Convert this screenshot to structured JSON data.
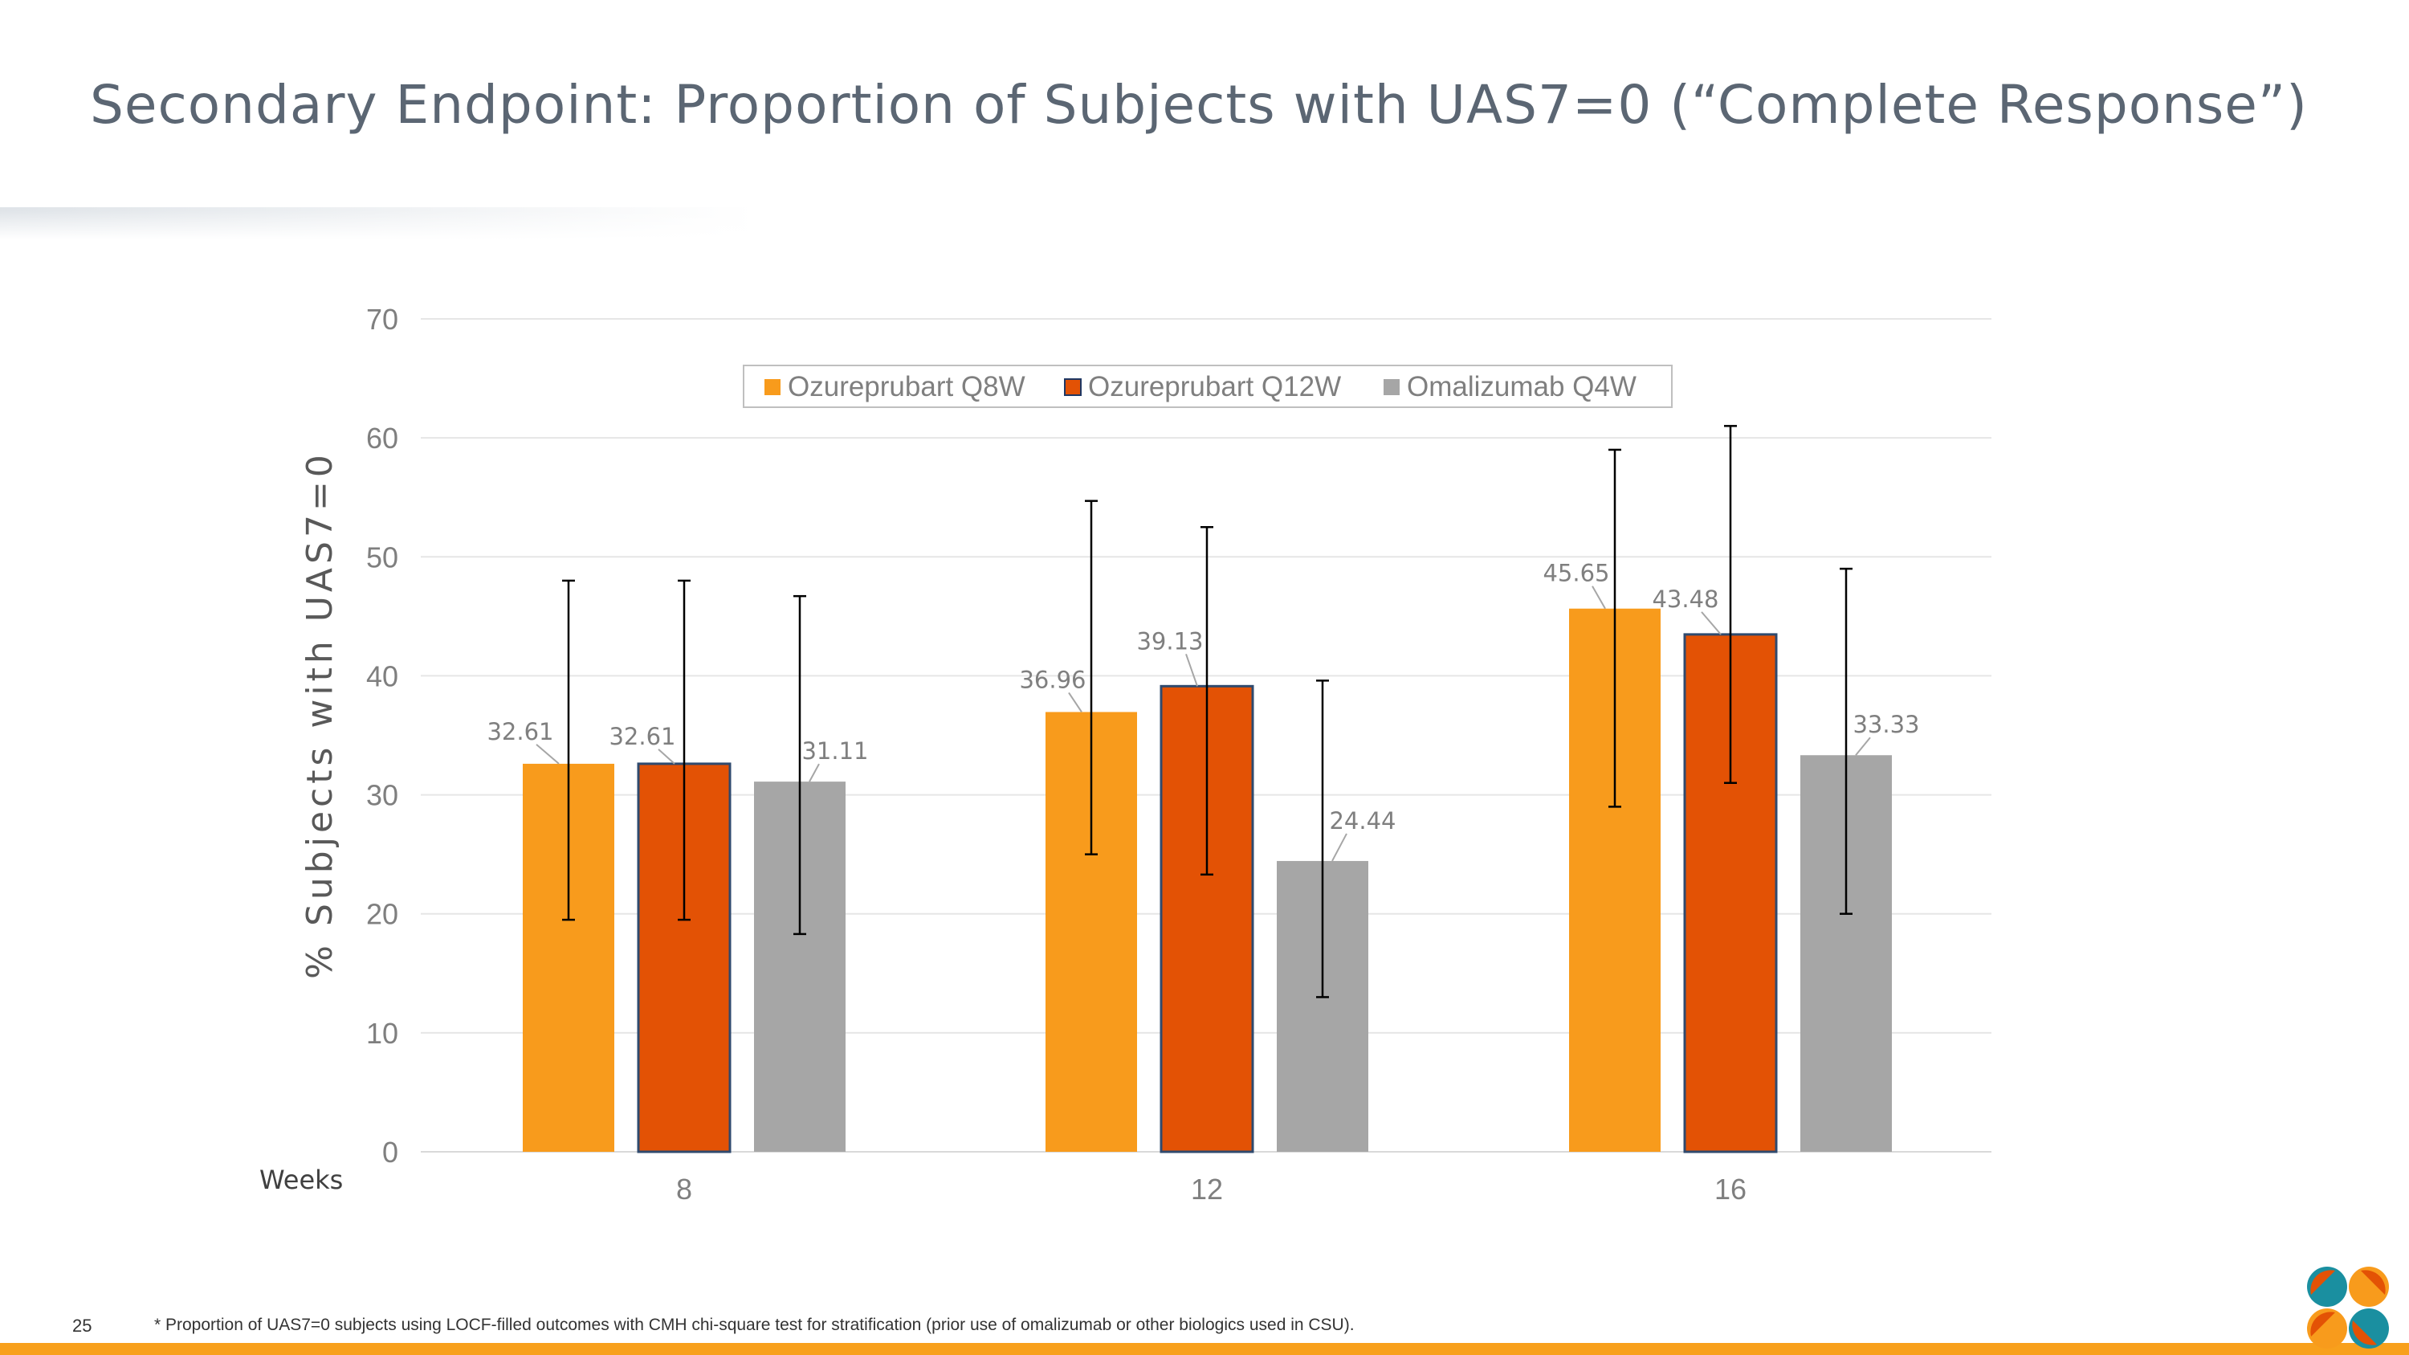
{
  "page": {
    "title": "Secondary Endpoint: Proportion of Subjects with UAS7=0 (“Complete Response”)",
    "page_number": "25",
    "footnote": "* Proportion of UAS7=0 subjects using LOCF-filled outcomes with CMH chi-square test for stratification (prior use of omalizumab or other biologics used in CSU)."
  },
  "colors": {
    "q8w": "#f89b1c",
    "q12w": "#e35205",
    "oma": "#a6a6a6",
    "axis_text": "#7f7f7f",
    "grid": "#e6e6e6",
    "accent": "#f8a01c"
  },
  "chart_data": {
    "type": "bar",
    "title": "",
    "xlabel": "Weeks",
    "ylabel": "% Subjects with UAS7=0",
    "ylim": [
      0,
      70
    ],
    "yticks": [
      0,
      10,
      20,
      30,
      40,
      50,
      60,
      70
    ],
    "categories": [
      "8",
      "12",
      "16"
    ],
    "legend_position": "top-center",
    "series": [
      {
        "name": "Ozureprubart Q8W",
        "values": [
          32.61,
          36.96,
          45.65
        ],
        "labels": [
          "32.61",
          "36.96",
          "45.65"
        ],
        "error_low": [
          19.5,
          25.0,
          29.0
        ],
        "error_high": [
          48.0,
          54.7,
          59.0
        ]
      },
      {
        "name": "Ozureprubart Q12W",
        "values": [
          32.61,
          39.13,
          43.48
        ],
        "labels": [
          "32.61",
          "39.13",
          "43.48"
        ],
        "error_low": [
          19.5,
          23.3,
          31.0
        ],
        "error_high": [
          48.0,
          52.5,
          61.0
        ]
      },
      {
        "name": "Omalizumab Q4W",
        "values": [
          31.11,
          24.44,
          33.33
        ],
        "labels": [
          "31.11",
          "24.44",
          "33.33"
        ],
        "error_low": [
          18.3,
          13.0,
          20.0
        ],
        "error_high": [
          46.7,
          39.6,
          49.0
        ]
      }
    ]
  }
}
